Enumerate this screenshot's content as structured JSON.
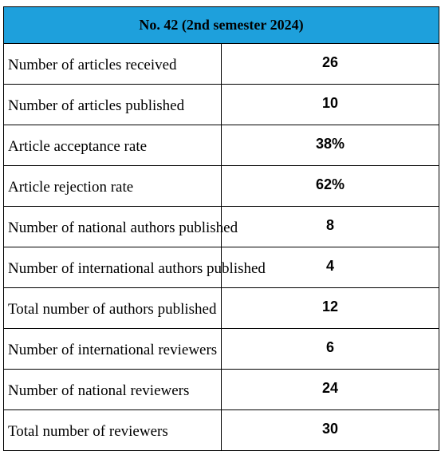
{
  "table": {
    "title": "No. 42 (2nd semester 2024)",
    "header_color": "#1ea0dc",
    "rows": [
      {
        "label": "Number of articles received",
        "value": "26"
      },
      {
        "label": "Number of articles published",
        "value": "10"
      },
      {
        "label": "Article acceptance rate",
        "value": "38%"
      },
      {
        "label": "Article rejection rate",
        "value": "62%"
      },
      {
        "label": "Number of national authors published",
        "value": "8"
      },
      {
        "label": "Number of international authors published",
        "value": "4"
      },
      {
        "label": "Total number of authors published",
        "value": "12"
      },
      {
        "label": "Number of international reviewers",
        "value": "6"
      },
      {
        "label": "Number of national reviewers",
        "value": "24"
      },
      {
        "label": "Total number of reviewers",
        "value": "30"
      }
    ]
  }
}
